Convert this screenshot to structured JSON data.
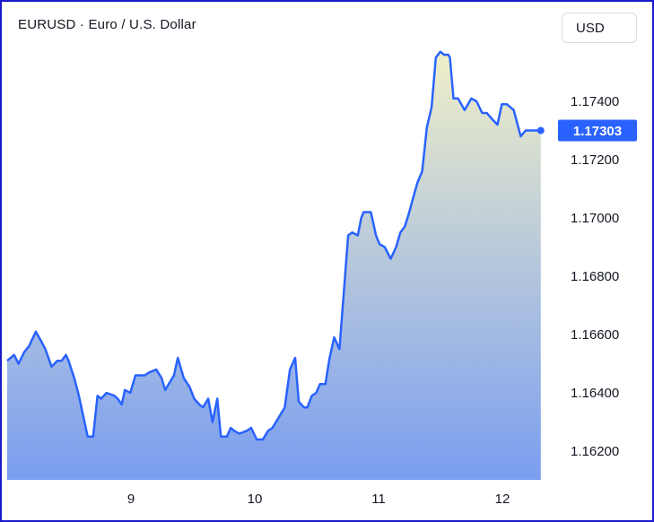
{
  "header": {
    "title": "EURUSD · Euro / U.S. Dollar",
    "currency_button": "USD"
  },
  "last_price_label": "1.17303",
  "colors": {
    "line": "#2962ff",
    "area_top": "#f0efc8",
    "area_bottom": "#7a9ef0",
    "price_tag_bg": "#2962ff",
    "frame_border": "#1a1acc"
  },
  "chart_data": {
    "type": "area",
    "ylim": [
      1.161,
      1.1765
    ],
    "y_ticks": [
      1.162,
      1.164,
      1.166,
      1.168,
      1.17,
      1.172,
      1.174
    ],
    "y_tick_labels": [
      "1.16200",
      "1.16400",
      "1.16600",
      "1.16800",
      "1.17000",
      "1.17200",
      "1.17400"
    ],
    "x_ticks": [
      1,
      2,
      3,
      4
    ],
    "x_tick_labels": [
      "9",
      "10",
      "11",
      "12"
    ],
    "x_range": [
      0,
      4.385
    ],
    "series": [
      {
        "x": [
          0.0,
          0.056,
          0.092,
          0.138,
          0.176,
          0.231,
          0.271,
          0.308,
          0.359,
          0.405,
          0.44,
          0.475,
          0.496,
          0.542,
          0.579,
          0.65,
          0.694,
          0.73,
          0.759,
          0.802,
          0.866,
          0.893,
          0.925,
          0.951,
          0.994,
          1.036,
          1.069,
          1.111,
          1.147,
          1.204,
          1.248,
          1.276,
          1.347,
          1.378,
          1.427,
          1.474,
          1.51,
          1.552,
          1.582,
          1.624,
          1.659,
          1.697,
          1.726,
          1.775,
          1.806,
          1.832,
          1.875,
          1.938,
          1.97,
          2.016,
          2.065,
          2.108,
          2.143,
          2.186,
          2.242,
          2.284,
          2.326,
          2.355,
          2.397,
          2.425,
          2.461,
          2.496,
          2.527,
          2.57,
          2.604,
          2.641,
          2.684,
          2.725,
          2.754,
          2.788,
          2.832,
          2.86,
          2.88,
          2.938,
          2.979,
          3.008,
          3.05,
          3.098,
          3.141,
          3.176,
          3.211,
          3.241,
          3.273,
          3.313,
          3.352,
          3.39,
          3.428,
          3.462,
          3.499,
          3.529,
          3.563,
          3.576,
          3.605,
          3.641,
          3.695,
          3.749,
          3.791,
          3.837,
          3.874,
          3.915,
          3.96,
          3.996,
          4.036,
          4.091,
          4.148,
          4.188,
          4.233,
          4.273,
          4.31
        ],
        "y": [
          1.1651,
          1.1653,
          1.165,
          1.1654,
          1.1656,
          1.1661,
          1.1658,
          1.1655,
          1.1649,
          1.1651,
          1.1651,
          1.1653,
          1.1651,
          1.1645,
          1.1639,
          1.1625,
          1.1625,
          1.1639,
          1.1638,
          1.164,
          1.1639,
          1.1638,
          1.1636,
          1.1641,
          1.164,
          1.1646,
          1.1646,
          1.1646,
          1.1647,
          1.1648,
          1.1645,
          1.1641,
          1.1646,
          1.1652,
          1.1645,
          1.1642,
          1.1638,
          1.1636,
          1.1635,
          1.1638,
          1.163,
          1.1638,
          1.1625,
          1.1625,
          1.1628,
          1.1627,
          1.1626,
          1.1627,
          1.1628,
          1.1624,
          1.1624,
          1.1627,
          1.1628,
          1.1631,
          1.1635,
          1.1648,
          1.1652,
          1.1637,
          1.1635,
          1.1635,
          1.1639,
          1.164,
          1.1643,
          1.1643,
          1.1652,
          1.1659,
          1.1655,
          1.1678,
          1.1694,
          1.1695,
          1.1694,
          1.17,
          1.1702,
          1.1702,
          1.1694,
          1.1691,
          1.169,
          1.1686,
          1.169,
          1.1695,
          1.1697,
          1.1701,
          1.1706,
          1.1712,
          1.1716,
          1.1731,
          1.1738,
          1.1755,
          1.1757,
          1.1756,
          1.1756,
          1.1755,
          1.1741,
          1.1741,
          1.1737,
          1.1741,
          1.174,
          1.1736,
          1.1736,
          1.1734,
          1.1732,
          1.1739,
          1.1739,
          1.1737,
          1.1728,
          1.173,
          1.173,
          1.173,
          1.173
        ]
      }
    ]
  }
}
